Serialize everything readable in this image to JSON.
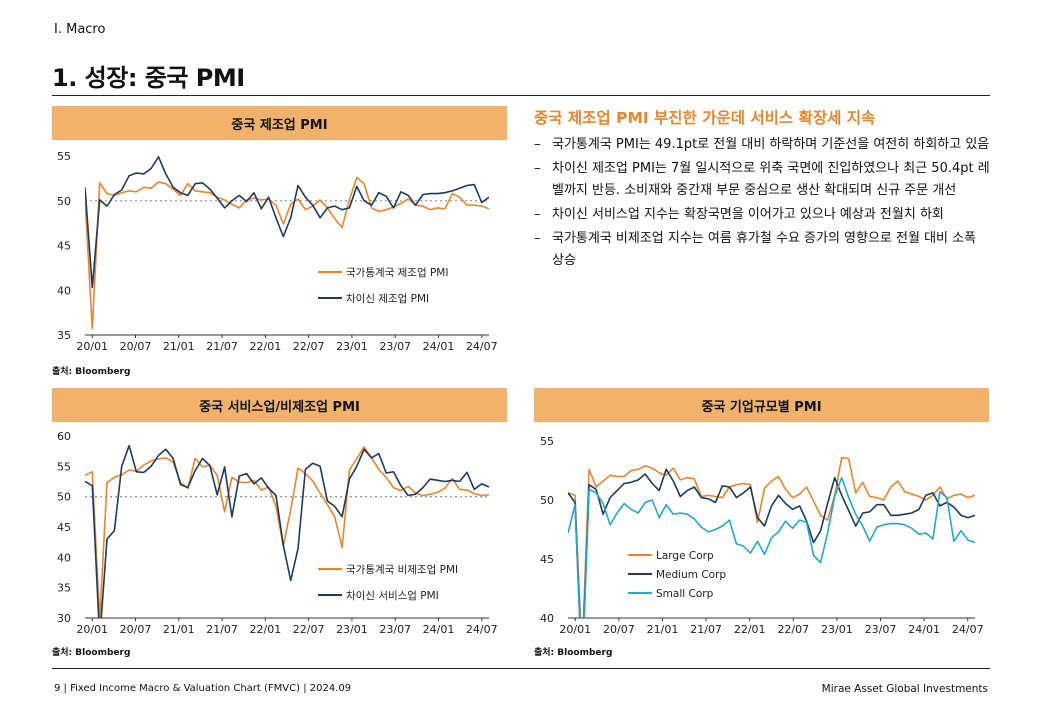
{
  "header": {
    "section": "I. Macro",
    "title": "1. 성장: 중국 PMI"
  },
  "footer": {
    "left": "9 | Fixed Income Macro & Valuation Chart (FMVC) | 2024.09",
    "right": "Mirae Asset Global Investments"
  },
  "commentary": {
    "title": "중국 제조업 PMI 부진한 가운데 서비스 확장세 지속",
    "bullets": [
      "국가통계국 PMI는 49.1pt로 전월 대비 하락하며 기준선을 여전히 하회하고 있음",
      "차이신 제조업 PMI는 7월 일시적으로 위축 국면에 진입하였으나 최근 50.4pt 레벨까지 반등. 소비재와 중간재 부문 중심으로 생산 확대되며 신규 주문 개선",
      "차이신 서비스업 지수는 확장국면을 이어가고 있으나 예상과 전월치 하회",
      "국가통계국 비제조업 지수는 여름 휴가철 수요 증가의 영향으로 전월 대비 소폭 상승"
    ]
  },
  "chart_data": [
    {
      "type": "line",
      "title": "중국 제조업 PMI",
      "source": "출처: Bloomberg",
      "x_ticks": [
        "20/01",
        "20/07",
        "21/01",
        "21/07",
        "22/01",
        "22/07",
        "23/01",
        "23/07",
        "24/01",
        "24/07"
      ],
      "x_start": "2019/12",
      "x_end": "2024/08",
      "ylim": [
        35,
        55
      ],
      "y_ticks": [
        35,
        40,
        45,
        50,
        55
      ],
      "reference_line": 50,
      "legend_position": "center-right",
      "series": [
        {
          "name": "국가통계국 제조업 PMI",
          "color": "#e8852e",
          "values": [
            50.2,
            35.7,
            52.0,
            50.8,
            50.6,
            50.9,
            51.1,
            51.0,
            51.5,
            51.4,
            52.1,
            51.9,
            51.3,
            50.6,
            51.9,
            51.1,
            51.0,
            50.9,
            50.4,
            50.1,
            49.6,
            49.2,
            50.1,
            50.3,
            50.1,
            50.2,
            49.5,
            47.4,
            49.6,
            50.2,
            49.0,
            49.4,
            50.1,
            49.2,
            48.0,
            47.0,
            50.1,
            52.6,
            51.9,
            49.2,
            48.8,
            49.0,
            49.3,
            49.7,
            50.2,
            49.5,
            49.4,
            49.0,
            49.2,
            49.1,
            50.8,
            50.4,
            49.5,
            49.5,
            49.4,
            49.1
          ]
        },
        {
          "name": "차이신 제조업 PMI",
          "color": "#1f3a5f",
          "values": [
            51.5,
            40.3,
            50.1,
            49.4,
            50.7,
            51.2,
            52.8,
            53.1,
            53.0,
            53.6,
            54.9,
            53.0,
            51.5,
            50.9,
            50.6,
            51.9,
            52.0,
            51.3,
            50.3,
            49.2,
            50.0,
            50.6,
            49.9,
            50.9,
            49.1,
            50.4,
            48.1,
            46.0,
            48.1,
            51.7,
            50.4,
            49.5,
            48.1,
            49.2,
            49.4,
            49.0,
            49.2,
            51.6,
            50.0,
            49.5,
            50.9,
            50.5,
            49.2,
            51.0,
            50.6,
            49.5,
            50.7,
            50.8,
            50.8,
            50.9,
            51.1,
            51.4,
            51.7,
            51.8,
            49.8,
            50.4
          ]
        }
      ]
    },
    {
      "type": "line",
      "title": "중국 서비스업/비제조업 PMI",
      "source": "출처: Bloomberg",
      "x_ticks": [
        "20/01",
        "20/07",
        "21/01",
        "21/07",
        "22/01",
        "22/07",
        "23/01",
        "23/07",
        "24/01",
        "24/07"
      ],
      "x_start": "2019/12",
      "x_end": "2024/08",
      "ylim": [
        30,
        60
      ],
      "y_ticks": [
        30,
        35,
        40,
        45,
        50,
        55,
        60
      ],
      "reference_line": 50,
      "legend_position": "center-right",
      "series": [
        {
          "name": "국가통계국 비제조업 PMI",
          "color": "#e8852e",
          "values": [
            53.5,
            54.1,
            29.6,
            52.3,
            53.2,
            53.6,
            54.4,
            54.2,
            55.2,
            55.9,
            56.2,
            56.4,
            55.7,
            52.4,
            51.4,
            56.3,
            54.9,
            55.2,
            53.5,
            47.5,
            53.2,
            52.4,
            52.3,
            52.7,
            51.1,
            51.6,
            48.4,
            41.9,
            47.8,
            54.7,
            53.8,
            52.6,
            50.6,
            48.7,
            46.7,
            41.6,
            54.4,
            56.3,
            58.2,
            56.4,
            54.5,
            53.2,
            51.5,
            51.0,
            51.7,
            50.6,
            50.2,
            50.4,
            50.7,
            51.4,
            53.0,
            51.2,
            51.1,
            50.5,
            50.2,
            50.3
          ]
        },
        {
          "name": "차이신 서비스업 PMI",
          "color": "#1f3a5f",
          "values": [
            52.5,
            51.8,
            26.5,
            43.0,
            44.4,
            55.0,
            58.4,
            54.1,
            54.0,
            55.0,
            56.8,
            57.8,
            56.3,
            52.0,
            51.5,
            54.3,
            56.3,
            55.1,
            50.3,
            54.9,
            46.7,
            53.4,
            53.8,
            52.1,
            53.1,
            51.4,
            50.2,
            42.0,
            36.2,
            41.4,
            54.5,
            55.5,
            55.0,
            49.3,
            48.4,
            46.7,
            52.9,
            55.0,
            57.8,
            56.4,
            57.1,
            53.9,
            54.1,
            51.8,
            50.2,
            50.4,
            51.5,
            52.9,
            52.7,
            52.5,
            52.7,
            52.5,
            54.0,
            51.2,
            52.1,
            51.6
          ]
        }
      ]
    },
    {
      "type": "line",
      "title": "중국 기업규모별 PMI",
      "source": "출처: Bloomberg",
      "x_ticks": [
        "20/01",
        "20/07",
        "21/01",
        "21/07",
        "22/01",
        "22/07",
        "23/01",
        "23/07",
        "24/01",
        "24/07"
      ],
      "x_start": "2019/12",
      "x_end": "2024/08",
      "ylim": [
        40,
        55
      ],
      "y_ticks": [
        40,
        45,
        50,
        55
      ],
      "legend_position": "lower-center",
      "series": [
        {
          "name": "Large Corp",
          "color": "#e8852e",
          "values": [
            50.6,
            50.4,
            36.8,
            52.6,
            51.1,
            51.6,
            52.1,
            52.0,
            52.0,
            52.5,
            52.6,
            52.9,
            52.7,
            52.3,
            52.1,
            52.7,
            51.7,
            51.9,
            51.8,
            50.3,
            50.4,
            50.3,
            50.2,
            51.1,
            51.3,
            51.4,
            51.3,
            48.1,
            51.0,
            51.6,
            52.0,
            50.9,
            50.2,
            50.5,
            51.1,
            49.9,
            48.7,
            48.3,
            50.4,
            53.6,
            53.5,
            50.6,
            51.5,
            50.3,
            50.2,
            50.0,
            51.1,
            51.6,
            50.7,
            50.5,
            50.3,
            50.0,
            50.4,
            51.1,
            50.1,
            50.4,
            50.5,
            50.2,
            50.4
          ]
        },
        {
          "name": "Medium Corp",
          "color": "#1f3a5f",
          "values": [
            50.6,
            49.8,
            35.5,
            51.3,
            50.9,
            48.8,
            50.2,
            50.8,
            51.4,
            51.5,
            51.7,
            52.2,
            51.4,
            50.8,
            52.6,
            51.6,
            50.3,
            50.8,
            51.1,
            50.2,
            50.1,
            49.8,
            51.2,
            51.1,
            50.2,
            50.6,
            51.1,
            48.5,
            47.8,
            49.5,
            50.4,
            49.7,
            49.2,
            49.5,
            48.2,
            46.4,
            47.4,
            49.7,
            51.9,
            50.4,
            49.1,
            47.8,
            48.9,
            49.0,
            49.6,
            49.6,
            48.7,
            48.7,
            48.8,
            48.9,
            49.2,
            50.4,
            50.6,
            49.5,
            49.8,
            49.4,
            48.7,
            48.5,
            48.7
          ]
        },
        {
          "name": "Small Corp",
          "color": "#26a7c8",
          "values": [
            47.2,
            49.6,
            33.9,
            50.9,
            50.6,
            49.7,
            47.9,
            48.9,
            49.7,
            49.2,
            48.9,
            49.8,
            50.0,
            48.5,
            49.6,
            48.8,
            48.9,
            48.8,
            48.4,
            47.7,
            47.3,
            47.5,
            47.8,
            48.3,
            46.3,
            46.1,
            45.5,
            46.5,
            45.4,
            46.8,
            47.3,
            48.2,
            47.6,
            48.3,
            48.1,
            45.3,
            44.7,
            47.2,
            50.3,
            51.9,
            50.2,
            48.8,
            47.8,
            46.5,
            47.7,
            47.9,
            48.0,
            48.0,
            47.9,
            47.6,
            47.1,
            47.2,
            46.7,
            50.7,
            50.2,
            46.5,
            47.4,
            46.6,
            46.4
          ]
        }
      ]
    }
  ]
}
